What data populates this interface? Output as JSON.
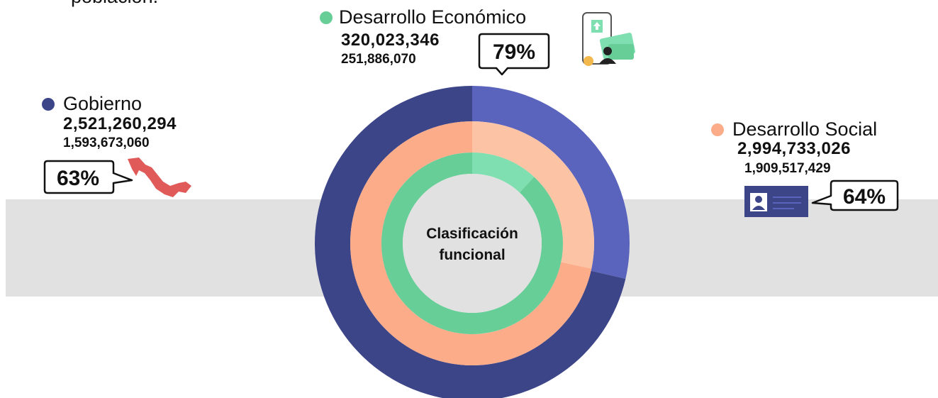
{
  "intro_fragment": "población.",
  "center_label": [
    "Clasificación",
    "funcional"
  ],
  "groups": [
    {
      "name": "Desarrollo Económico",
      "total": "320,023,346",
      "executed": "251,886,070",
      "percent": "79%"
    },
    {
      "name": "Gobierno",
      "total": "2,521,260,294",
      "executed": "1,593,673,060",
      "percent": "63%"
    },
    {
      "name": "Desarrollo Social",
      "total": "2,994,733,026",
      "executed": "1,909,517,429",
      "percent": "64%"
    }
  ]
}
